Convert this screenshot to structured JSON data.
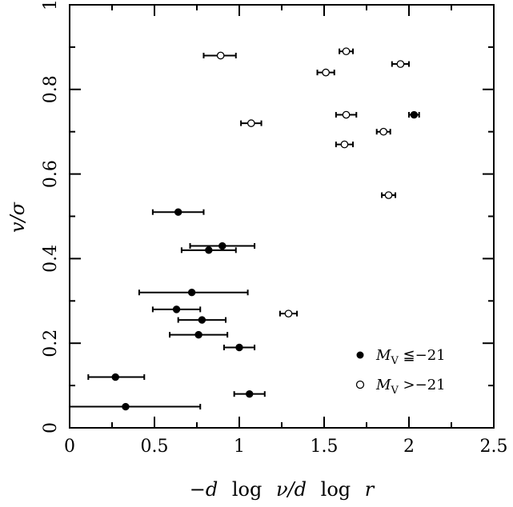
{
  "chart_data": {
    "type": "scatter",
    "xlabel_parts": [
      "−d",
      "log",
      "ν/d",
      "log",
      "r"
    ],
    "ylabel": "v/σ",
    "xlim": [
      0,
      2.5
    ],
    "ylim": [
      0,
      1
    ],
    "x_ticks": [
      "0",
      "0.5",
      "1",
      "1.5",
      "2",
      "2.5"
    ],
    "y_ticks": [
      "0",
      "0.2",
      "0.4",
      "0.6",
      "0.8",
      "1"
    ],
    "legend_placement": "bottom-right",
    "series": [
      {
        "name": "M_V ≦−21",
        "legend_symbol": "M",
        "legend_subscript": "V",
        "legend_rest": " ≦−21",
        "marker": "filled",
        "points": [
          {
            "x": 0.33,
            "y": 0.05,
            "xerr": [
              0.0,
              0.77
            ]
          },
          {
            "x": 0.27,
            "y": 0.12,
            "xerr": [
              0.11,
              0.44
            ]
          },
          {
            "x": 1.06,
            "y": 0.08,
            "xerr": [
              0.97,
              1.15
            ]
          },
          {
            "x": 1.0,
            "y": 0.19,
            "xerr": [
              0.91,
              1.09
            ]
          },
          {
            "x": 0.76,
            "y": 0.22,
            "xerr": [
              0.59,
              0.93
            ]
          },
          {
            "x": 0.78,
            "y": 0.255,
            "xerr": [
              0.64,
              0.92
            ]
          },
          {
            "x": 0.63,
            "y": 0.28,
            "xerr": [
              0.49,
              0.77
            ]
          },
          {
            "x": 0.72,
            "y": 0.32,
            "xerr": [
              0.41,
              1.05
            ]
          },
          {
            "x": 0.82,
            "y": 0.42,
            "xerr": [
              0.66,
              0.98
            ]
          },
          {
            "x": 0.9,
            "y": 0.43,
            "xerr": [
              0.71,
              1.09
            ]
          },
          {
            "x": 0.64,
            "y": 0.51,
            "xerr": [
              0.49,
              0.79
            ]
          },
          {
            "x": 2.03,
            "y": 0.74,
            "xerr": [
              2.0,
              2.06
            ]
          }
        ]
      },
      {
        "name": "M_V >−21",
        "legend_symbol": "M",
        "legend_subscript": "V",
        "legend_rest": " >−21",
        "marker": "open",
        "points": [
          {
            "x": 1.29,
            "y": 0.27,
            "xerr": [
              1.24,
              1.34
            ]
          },
          {
            "x": 1.88,
            "y": 0.55,
            "xerr": [
              1.84,
              1.92
            ]
          },
          {
            "x": 1.62,
            "y": 0.67,
            "xerr": [
              1.57,
              1.67
            ]
          },
          {
            "x": 1.85,
            "y": 0.7,
            "xerr": [
              1.81,
              1.89
            ]
          },
          {
            "x": 1.07,
            "y": 0.72,
            "xerr": [
              1.01,
              1.13
            ]
          },
          {
            "x": 1.63,
            "y": 0.74,
            "xerr": [
              1.57,
              1.69
            ]
          },
          {
            "x": 1.51,
            "y": 0.84,
            "xerr": [
              1.46,
              1.56
            ]
          },
          {
            "x": 1.95,
            "y": 0.86,
            "xerr": [
              1.9,
              2.0
            ]
          },
          {
            "x": 0.89,
            "y": 0.88,
            "xerr": [
              0.79,
              0.98
            ]
          },
          {
            "x": 1.63,
            "y": 0.89,
            "xerr": [
              1.59,
              1.67
            ]
          }
        ]
      }
    ]
  }
}
